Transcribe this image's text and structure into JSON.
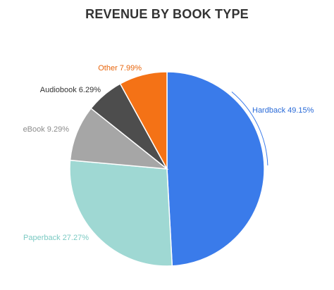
{
  "chart_data": {
    "type": "pie",
    "title": "REVENUE BY BOOK TYPE",
    "legend": "none",
    "slices": [
      {
        "label": "Hardback",
        "value": 49.15,
        "display": "Hardback 49.15%",
        "color": "#3a7bea",
        "label_color": "#2a6bd8"
      },
      {
        "label": "Paperback",
        "value": 27.27,
        "display": "Paperback 27.27%",
        "color": "#9fd8d3",
        "label_color": "#7ccac3"
      },
      {
        "label": "eBook",
        "value": 9.29,
        "display": "eBook 9.29%",
        "color": "#a6a6a6",
        "label_color": "#8c8c8c"
      },
      {
        "label": "Audiobook",
        "value": 6.29,
        "display": "Audiobook 6.29%",
        "color": "#4d4d4d",
        "label_color": "#333333"
      },
      {
        "label": "Other",
        "value": 7.99,
        "display": "Other 7.99%",
        "color": "#f47216",
        "label_color": "#e8650c"
      }
    ]
  }
}
